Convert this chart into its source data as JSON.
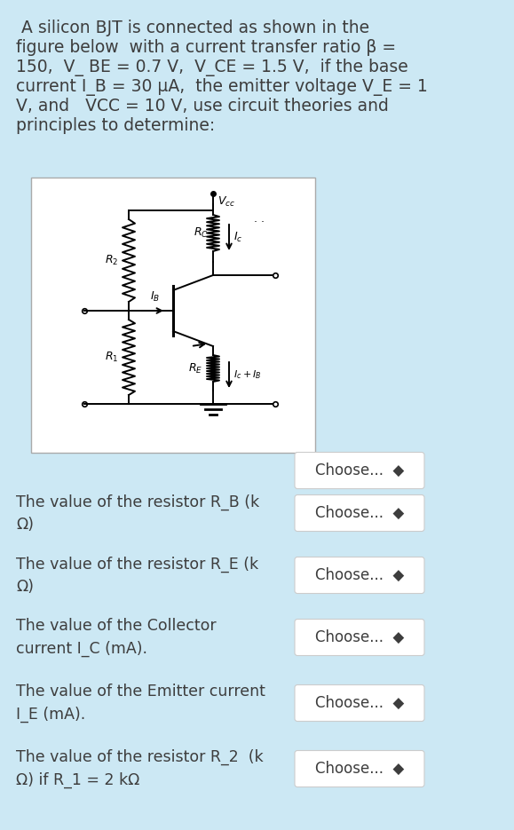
{
  "bg_color": "#cce8f4",
  "text_color": "#3d3d3d",
  "title_text_lines": [
    " A silicon BJT is connected as shown in the",
    "figure below  with a current transfer ratio β =",
    "150,  V_ BE = 0.7 V,  V_CE = 1.5 V,  if the base",
    "current I_B = 30 μA,  the emitter voltage V_E = 1",
    "V, and   VCC = 10 V, use circuit theories and",
    "principles to determine:"
  ],
  "choose_text": "Choose...  ◄►",
  "questions": [
    "",
    "The value of the resistor R_B (k\nΩ)",
    "The value of the resistor R_E (k\nΩ)",
    "The value of the Collector\ncurrent I_C (mA).",
    "The value of the Emitter current\nI_E (mA).",
    "The value of the resistor R_2  (k\nΩ) if R_1 = 2 kΩ"
  ]
}
